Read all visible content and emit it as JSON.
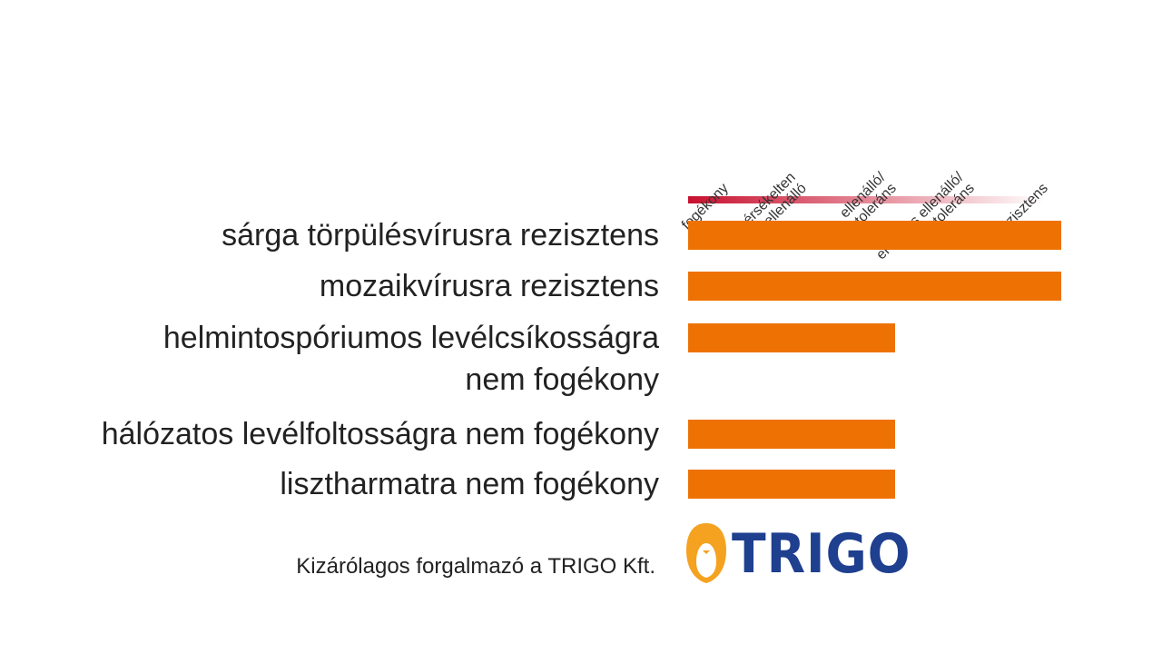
{
  "chart_data": {
    "type": "bar",
    "orientation": "horizontal",
    "scale_labels": [
      [
        "fogékony"
      ],
      [
        "mérsékelten",
        "ellenálló"
      ],
      [
        "ellenálló/",
        "toleráns"
      ],
      [
        "erőteljes ellenálló/",
        "toleráns"
      ],
      [
        "rezisztens"
      ]
    ],
    "categories": [
      [
        "sárga törpülésvírusra rezisztens"
      ],
      [
        "mozaikvírusra rezisztens"
      ],
      [
        "helmintospóriumos levélcsíkosságra",
        "nem fogékony"
      ],
      [
        "hálózatos levélfoltosságra nem fogékony"
      ],
      [
        "lisztharmatra nem fogékony"
      ]
    ],
    "values": [
      5,
      5,
      3,
      3,
      3
    ],
    "xlim": [
      0.5,
      5.5
    ],
    "grid": false,
    "legend": "none",
    "colors": {
      "bar": "#ee7203",
      "scale_start": "#c8102e",
      "scale_end": "#ffffff"
    }
  },
  "footer": {
    "text": "Kizárólagos forgalmazó a TRIGO Kft."
  },
  "logo": {
    "text": "TRIGO",
    "icon": "trigo-penguin-icon",
    "colors": {
      "icon": "#f4a21f",
      "text": "#1f3f8f"
    }
  }
}
